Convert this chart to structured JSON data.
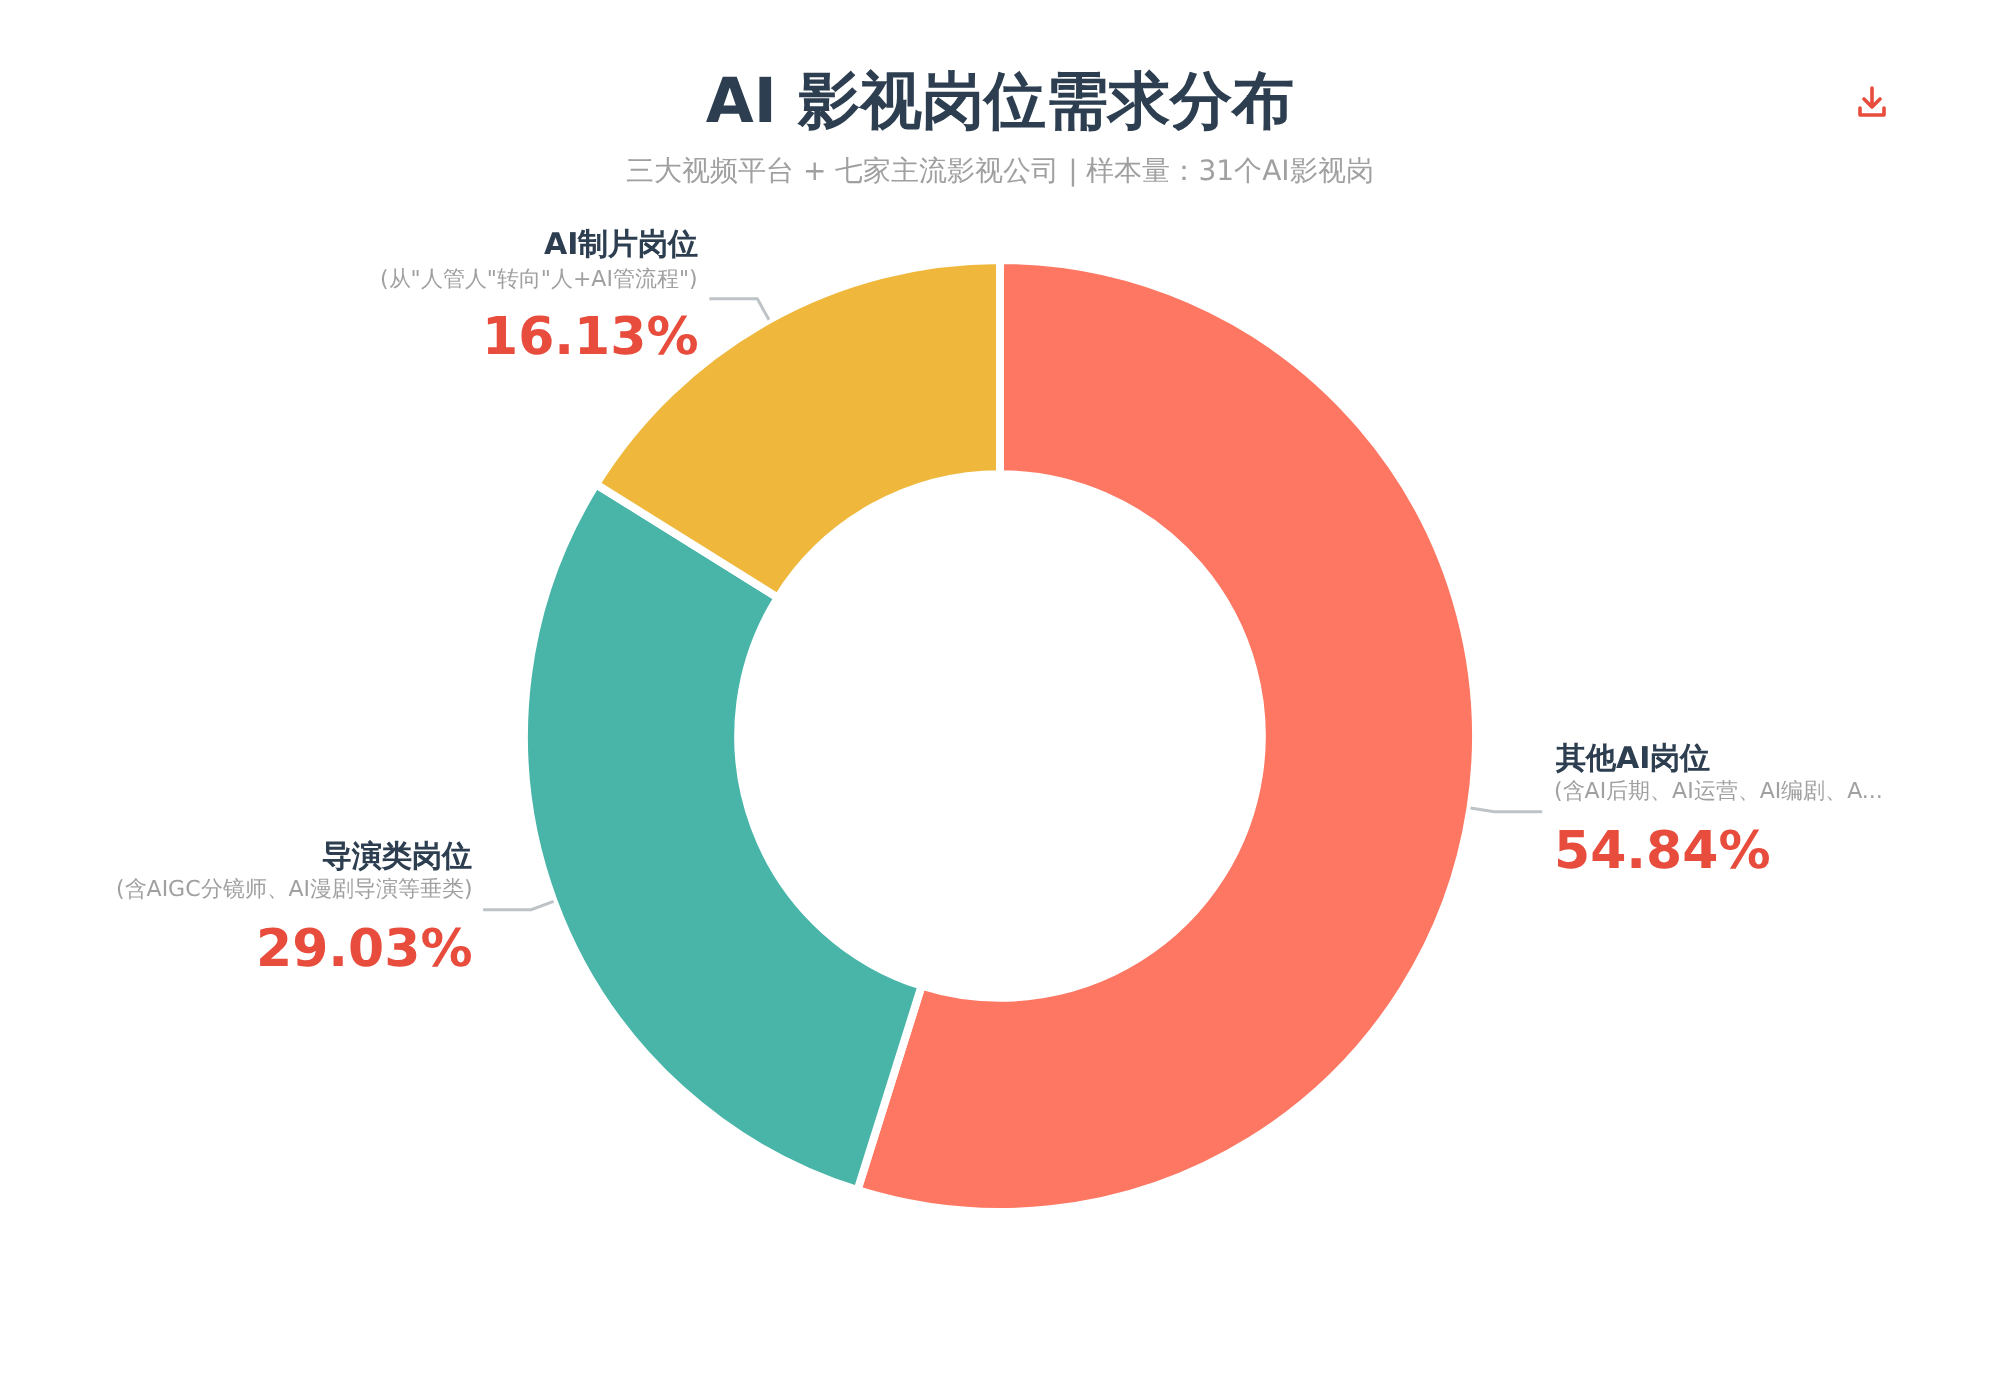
{
  "chart_data": {
    "type": "donut",
    "title": "AI 影视岗位需求分布",
    "subtitle": "三大视频平台 + 七家主流影视公司 | 样本量：31个AI影视岗",
    "categories": [
      "其他AI岗位",
      "导演类岗位",
      "AI制片岗位"
    ],
    "values": [
      54.84,
      29.03,
      16.13
    ],
    "colors": [
      "#fd7762",
      "#48b5a8",
      "#efb73c"
    ],
    "value_labels": [
      "54.84%",
      "29.03%",
      "16.13%"
    ],
    "annotations": [
      "(含AI后期、AI运营、AI编剧、A...",
      "(含AIGC分镜师、AI漫剧导演等垂类)",
      "(从\"人管人\"转向\"人+AI管流程\")"
    ]
  }
}
